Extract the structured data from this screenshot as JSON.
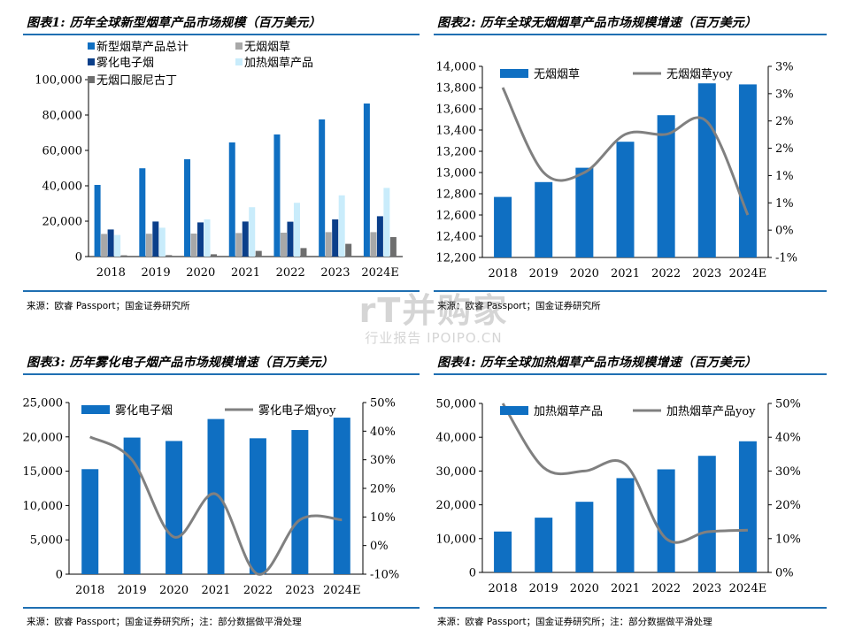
{
  "colors": {
    "rule": "#1f6fb2",
    "bar_blue": "#0f6fc2",
    "bar_dark": "#0b3f8a",
    "bar_gray": "#a8a8a8",
    "bar_light": "#c9ecfb",
    "bar_dgray": "#6e6e6e",
    "line_gray": "#808080",
    "axis": "#000000"
  },
  "watermark": {
    "brand": "rT并购家",
    "sub": "行业报告 IPOIPO.CN"
  },
  "panels": [
    {
      "title": "图表1: 历年全球新型烟草产品市场规模（百万美元）",
      "source": "来源：欧睿 Passport；国金证券研究所"
    },
    {
      "title": "图表2: 历年全球无烟烟草产品市场规模增速（百万美元）",
      "source": "来源：欧睿 Passport；国金证券研究所"
    },
    {
      "title": "图表3: 历年雾化电子烟产品市场规模增速（百万美元）",
      "source": "来源：欧睿 Passport；国金证券研究所；注：部分数据做平滑处理"
    },
    {
      "title": "图表4: 历年全球加热烟草产品市场规模增速（百万美元）",
      "source": "来源：欧睿 Passport；国金证券研究所；注：部分数据做平滑处理"
    }
  ],
  "chart_data": [
    {
      "type": "bar",
      "categories": [
        "2018",
        "2019",
        "2020",
        "2021",
        "2022",
        "2023",
        "2024E"
      ],
      "ylim": [
        0,
        100000
      ],
      "yticks": [
        "0",
        "20,000",
        "40,000",
        "60,000",
        "80,000",
        "100,000"
      ],
      "legend_position": "top-left",
      "series": [
        {
          "name": "新型烟草产品总计",
          "values": [
            40500,
            49900,
            55000,
            64500,
            69000,
            77500,
            86500
          ]
        },
        {
          "name": "无烟烟草",
          "values": [
            12800,
            12900,
            13000,
            13300,
            13500,
            13800,
            13800
          ]
        },
        {
          "name": "雾化电子烟",
          "values": [
            15300,
            19800,
            19300,
            19800,
            19700,
            21000,
            22800
          ]
        },
        {
          "name": "加热烟草产品",
          "values": [
            12200,
            16300,
            21000,
            27900,
            30400,
            34600,
            38800
          ]
        },
        {
          "name": "无烟口服尼古丁",
          "values": [
            700,
            800,
            1300,
            3200,
            4800,
            7200,
            11000
          ]
        }
      ]
    },
    {
      "type": "bar",
      "categories": [
        "2018",
        "2019",
        "2020",
        "2021",
        "2022",
        "2023",
        "2024E"
      ],
      "ylim": [
        12200,
        14000
      ],
      "yticks": [
        "12,200",
        "12,400",
        "12,600",
        "12,800",
        "13,000",
        "13,200",
        "13,400",
        "13,600",
        "13,800",
        "14,000"
      ],
      "y2lim": [
        -1,
        3.5
      ],
      "y2ticks": [
        "-1%",
        "0%",
        "1%",
        "1%",
        "2%",
        "2%",
        "3%",
        "3%"
      ],
      "legend_position": "top",
      "series": [
        {
          "name": "无烟烟草",
          "values": [
            12770,
            12910,
            13045,
            13290,
            13540,
            13840,
            13830
          ]
        },
        {
          "name": "无烟烟草yoy",
          "axis": "right",
          "values": [
            3.0,
            1.0,
            1.0,
            1.9,
            1.9,
            2.2,
            0
          ]
        }
      ]
    },
    {
      "type": "bar",
      "categories": [
        "2018",
        "2019",
        "2020",
        "2021",
        "2022",
        "2023",
        "2024E"
      ],
      "ylim": [
        0,
        25000
      ],
      "yticks": [
        "0",
        "5,000",
        "10,000",
        "15,000",
        "20,000",
        "25,000"
      ],
      "y2lim": [
        -10,
        50
      ],
      "y2ticks": [
        "-10%",
        "0%",
        "10%",
        "20%",
        "30%",
        "40%",
        "50%"
      ],
      "legend_position": "top",
      "series": [
        {
          "name": "雾化电子烟",
          "values": [
            15300,
            19900,
            19400,
            22600,
            19800,
            21000,
            22800
          ]
        },
        {
          "name": "雾化电子烟yoy",
          "axis": "right",
          "values": [
            38,
            30,
            3,
            18,
            -10,
            9,
            9
          ]
        }
      ]
    },
    {
      "type": "bar",
      "categories": [
        "2018",
        "2019",
        "2020",
        "2021",
        "2022",
        "2023",
        "2024E"
      ],
      "ylim": [
        0,
        50000
      ],
      "yticks": [
        "0",
        "10,000",
        "20,000",
        "30,000",
        "40,000",
        "50,000"
      ],
      "y2lim": [
        0,
        50
      ],
      "y2ticks": [
        "0%",
        "10%",
        "20%",
        "30%",
        "40%",
        "50%"
      ],
      "legend_position": "top",
      "series": [
        {
          "name": "加热烟草产品",
          "values": [
            12100,
            16200,
            20900,
            27900,
            30500,
            34500,
            38800
          ]
        },
        {
          "name": "加热烟草产品yoy",
          "axis": "right",
          "values": [
            50,
            31,
            30,
            32,
            10,
            12,
            12.5
          ]
        }
      ]
    }
  ]
}
